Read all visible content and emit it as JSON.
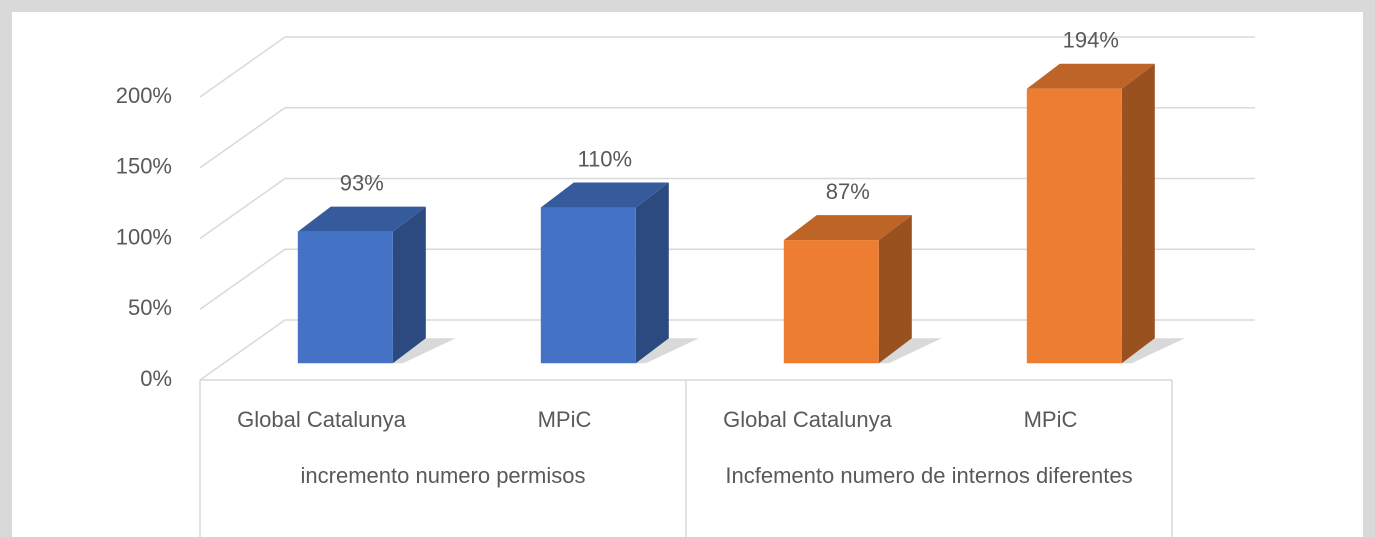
{
  "chart_data": {
    "type": "bar",
    "groups": [
      {
        "label": "incremento numero permisos",
        "categories": [
          "Global Catalunya",
          "MPiC"
        ],
        "values": [
          93,
          110
        ],
        "value_labels": [
          "93%",
          "110%"
        ],
        "color": "#4472c4"
      },
      {
        "label": "Incfemento numero de internos diferentes",
        "categories": [
          "Global Catalunya",
          "MPiC"
        ],
        "values": [
          87,
          194
        ],
        "value_labels": [
          "87%",
          "194%"
        ],
        "color": "#ed7d31"
      }
    ],
    "ylim": [
      0,
      200
    ],
    "yticks": [
      {
        "value": 0,
        "label": "0%"
      },
      {
        "value": 50,
        "label": "50%"
      },
      {
        "value": 100,
        "label": "100%"
      },
      {
        "value": 150,
        "label": "150%"
      },
      {
        "value": 200,
        "label": "200%"
      }
    ],
    "grid": true
  }
}
